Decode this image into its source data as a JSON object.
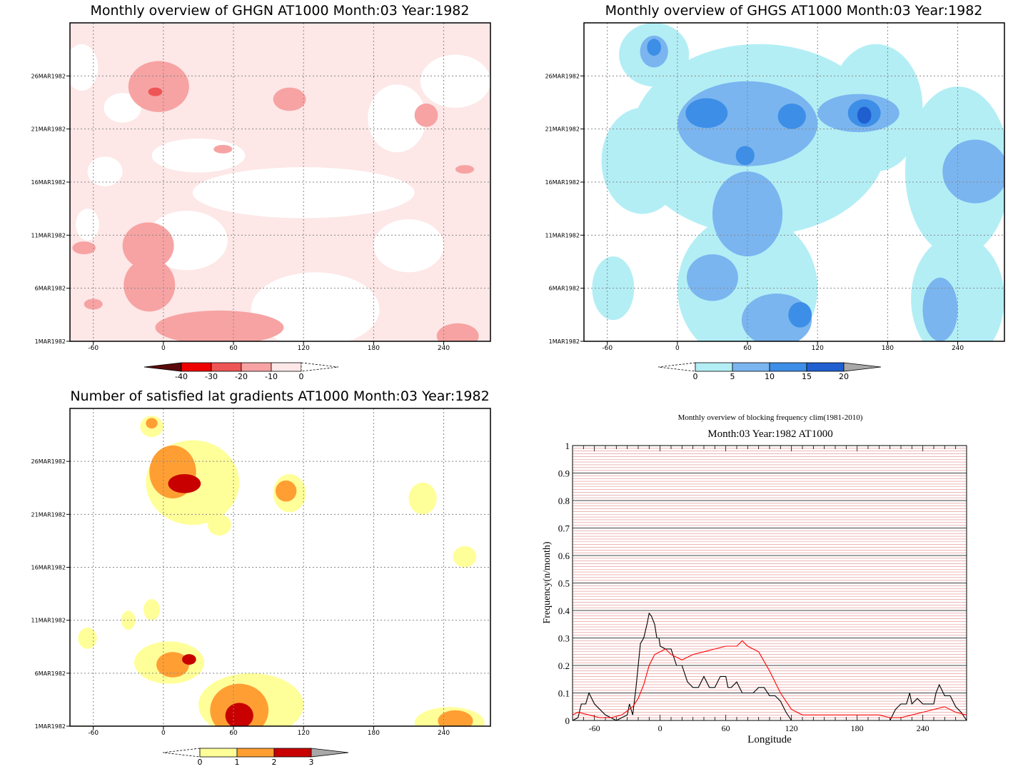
{
  "chart_data": [
    {
      "type": "heatmap",
      "title": "Monthly overview of GHGN AT1000 Month:03 Year:1982",
      "x_ticks": [
        "-60",
        "0",
        "60",
        "120",
        "180",
        "240"
      ],
      "y_ticks": [
        "1MAR1982",
        "6MAR1982",
        "11MAR1982",
        "16MAR1982",
        "21MAR1982",
        "26MAR1982"
      ],
      "colorbar": {
        "labels": [
          "-40",
          "-30",
          "-20",
          "-10",
          "0"
        ],
        "colors": [
          "#5a0a0a",
          "#ee0000",
          "#ee5555",
          "#f7a3a3",
          "#fde7e7",
          "#ffffff"
        ]
      },
      "background": "#fde7e7",
      "patches": [
        {
          "level": "white",
          "lon": -70,
          "day": 26.8,
          "rlon": 14,
          "rday": 2.2
        },
        {
          "level": "white",
          "lon": -35,
          "day": 23,
          "rlon": 16,
          "rday": 1.4
        },
        {
          "level": "white",
          "lon": 30,
          "day": 18.5,
          "rlon": 40,
          "rday": 1.6
        },
        {
          "level": "white",
          "lon": 120,
          "day": 15,
          "rlon": 95,
          "rday": 2.4
        },
        {
          "level": "white",
          "lon": 200,
          "day": 22,
          "rlon": 25,
          "rday": 3.2
        },
        {
          "level": "white",
          "lon": 250,
          "day": 25.5,
          "rlon": 30,
          "rday": 2.5
        },
        {
          "level": "white",
          "lon": 130,
          "day": 4,
          "rlon": 55,
          "rday": 3.5
        },
        {
          "level": "white",
          "lon": 20,
          "day": 10.5,
          "rlon": 35,
          "rday": 2.8
        },
        {
          "level": "white",
          "lon": -50,
          "day": 17,
          "rlon": 15,
          "rday": 1.4
        },
        {
          "level": "white",
          "lon": -65,
          "day": 12,
          "rlon": 10,
          "rday": 1.5
        },
        {
          "level": "white",
          "lon": 210,
          "day": 10,
          "rlon": 30,
          "rday": 2.5
        },
        {
          "level": "-10",
          "lon": -4,
          "day": 25,
          "rlon": 26,
          "rday": 2.4
        },
        {
          "level": "-10",
          "lon": 108,
          "day": 23.8,
          "rlon": 14,
          "rday": 1.1
        },
        {
          "level": "-10",
          "lon": 225,
          "day": 22.3,
          "rlon": 10,
          "rday": 1.1
        },
        {
          "level": "-10",
          "lon": -13,
          "day": 10,
          "rlon": 22,
          "rday": 2.2
        },
        {
          "level": "-10",
          "lon": -12,
          "day": 6.3,
          "rlon": 22,
          "rday": 2.5
        },
        {
          "level": "-10",
          "lon": 48,
          "day": 2.3,
          "rlon": 55,
          "rday": 1.6
        },
        {
          "level": "-10",
          "lon": -68,
          "day": 9.8,
          "rlon": 10,
          "rday": 0.6
        },
        {
          "level": "-10",
          "lon": -60,
          "day": 4.5,
          "rlon": 8,
          "rday": 0.5
        },
        {
          "level": "-10",
          "lon": 51,
          "day": 19.1,
          "rlon": 8,
          "rday": 0.4
        },
        {
          "level": "-10",
          "lon": 258,
          "day": 17.2,
          "rlon": 8,
          "rday": 0.4
        },
        {
          "level": "-10",
          "lon": 252,
          "day": 1.5,
          "rlon": 18,
          "rday": 1.2
        },
        {
          "level": "-20",
          "lon": -7,
          "day": 24.5,
          "rlon": 6,
          "rday": 0.4
        }
      ]
    },
    {
      "type": "heatmap",
      "title": "Monthly overview of GHGS AT1000 Month:03 Year:1982",
      "x_ticks": [
        "-60",
        "0",
        "60",
        "120",
        "180",
        "240"
      ],
      "y_ticks": [
        "1MAR1982",
        "6MAR1982",
        "11MAR1982",
        "16MAR1982",
        "21MAR1982",
        "26MAR1982"
      ],
      "colorbar": {
        "labels": [
          "0",
          "5",
          "10",
          "15",
          "20"
        ],
        "colors": [
          "#ffffff",
          "#b3eef5",
          "#7ab5f0",
          "#3d8ee6",
          "#1f5fd0",
          "#a8a8a8"
        ]
      },
      "background": "#ffffff",
      "patches": [
        {
          "level": "0-5",
          "lon": 70,
          "day": 20,
          "rlon": 110,
          "rday": 9
        },
        {
          "level": "0-5",
          "lon": -30,
          "day": 18,
          "rlon": 35,
          "rday": 5
        },
        {
          "level": "0-5",
          "lon": 60,
          "day": 6,
          "rlon": 60,
          "rday": 7
        },
        {
          "level": "0-5",
          "lon": 240,
          "day": 17,
          "rlon": 45,
          "rday": 8
        },
        {
          "level": "0-5",
          "lon": 240,
          "day": 5,
          "rlon": 40,
          "rday": 6
        },
        {
          "level": "0-5",
          "lon": -55,
          "day": 6,
          "rlon": 18,
          "rday": 3
        },
        {
          "level": "0-5",
          "lon": 170,
          "day": 23,
          "rlon": 40,
          "rday": 6
        },
        {
          "level": "0-5",
          "lon": -20,
          "day": 28,
          "rlon": 30,
          "rday": 3
        },
        {
          "level": "5-10",
          "lon": 60,
          "day": 21.5,
          "rlon": 60,
          "rday": 4
        },
        {
          "level": "5-10",
          "lon": 155,
          "day": 22.5,
          "rlon": 35,
          "rday": 1.8
        },
        {
          "level": "5-10",
          "lon": 60,
          "day": 13,
          "rlon": 30,
          "rday": 4
        },
        {
          "level": "5-10",
          "lon": 30,
          "day": 7,
          "rlon": 22,
          "rday": 2.2
        },
        {
          "level": "5-10",
          "lon": 85,
          "day": 3,
          "rlon": 30,
          "rday": 2.5
        },
        {
          "level": "5-10",
          "lon": 255,
          "day": 17,
          "rlon": 28,
          "rday": 3
        },
        {
          "level": "5-10",
          "lon": 225,
          "day": 4,
          "rlon": 15,
          "rday": 3
        },
        {
          "level": "5-10",
          "lon": -20,
          "day": 28.3,
          "rlon": 12,
          "rday": 1.5
        },
        {
          "level": "10-15",
          "lon": 25,
          "day": 22.5,
          "rlon": 18,
          "rday": 1.4
        },
        {
          "level": "10-15",
          "lon": 98,
          "day": 22.2,
          "rlon": 12,
          "rday": 1.2
        },
        {
          "level": "10-15",
          "lon": 160,
          "day": 22.5,
          "rlon": 14,
          "rday": 1.3
        },
        {
          "level": "10-15",
          "lon": 58,
          "day": 18.5,
          "rlon": 8,
          "rday": 0.9
        },
        {
          "level": "10-15",
          "lon": 105,
          "day": 3.5,
          "rlon": 10,
          "rday": 1.2
        },
        {
          "level": "10-15",
          "lon": -20,
          "day": 28.7,
          "rlon": 6,
          "rday": 0.8
        },
        {
          "level": "15-20",
          "lon": 160,
          "day": 22.3,
          "rlon": 6,
          "rday": 0.8
        }
      ]
    },
    {
      "type": "heatmap",
      "title": "Number of satisfied lat gradients AT1000 Month:03 Year:1982",
      "x_ticks": [
        "-60",
        "0",
        "60",
        "120",
        "180",
        "240"
      ],
      "y_ticks": [
        "1MAR1982",
        "6MAR1982",
        "11MAR1982",
        "16MAR1982",
        "21MAR1982",
        "26MAR1982"
      ],
      "colorbar": {
        "labels": [
          "0",
          "1",
          "2",
          "3"
        ],
        "colors": [
          "#ffffff",
          "#ffff9a",
          "#ff9f33",
          "#c80000",
          "#a8a8a8"
        ]
      },
      "background": "#ffffff",
      "patches": [
        {
          "level": "0-1",
          "lon": 25,
          "day": 24,
          "rlon": 40,
          "rday": 4
        },
        {
          "level": "0-1",
          "lon": 108,
          "day": 23,
          "rlon": 14,
          "rday": 1.8
        },
        {
          "level": "0-1",
          "lon": 222,
          "day": 22.5,
          "rlon": 12,
          "rday": 1.5
        },
        {
          "level": "0-1",
          "lon": 48,
          "day": 20,
          "rlon": 10,
          "rday": 1
        },
        {
          "level": "0-1",
          "lon": 258,
          "day": 17,
          "rlon": 10,
          "rday": 1
        },
        {
          "level": "0-1",
          "lon": -10,
          "day": 12,
          "rlon": 7,
          "rday": 1
        },
        {
          "level": "0-1",
          "lon": -30,
          "day": 11,
          "rlon": 6,
          "rday": 0.9
        },
        {
          "level": "0-1",
          "lon": -65,
          "day": 9.3,
          "rlon": 8,
          "rday": 1
        },
        {
          "level": "0-1",
          "lon": 5,
          "day": 7,
          "rlon": 30,
          "rday": 2
        },
        {
          "level": "0-1",
          "lon": 75,
          "day": 3,
          "rlon": 45,
          "rday": 3
        },
        {
          "level": "0-1",
          "lon": 245,
          "day": 1.3,
          "rlon": 30,
          "rday": 1.5
        },
        {
          "level": "0-1",
          "lon": -10,
          "day": 29.3,
          "rlon": 10,
          "rday": 1
        },
        {
          "level": "0-1",
          "lon": -68,
          "day": 0.5,
          "rlon": 4,
          "rday": 0.6
        },
        {
          "level": "1-2",
          "lon": 8,
          "day": 25,
          "rlon": 20,
          "rday": 2.5
        },
        {
          "level": "1-2",
          "lon": 105,
          "day": 23.2,
          "rlon": 9,
          "rday": 1
        },
        {
          "level": "1-2",
          "lon": 8,
          "day": 6.8,
          "rlon": 14,
          "rday": 1.2
        },
        {
          "level": "1-2",
          "lon": 65,
          "day": 2.5,
          "rlon": 25,
          "rday": 2.5
        },
        {
          "level": "1-2",
          "lon": 250,
          "day": 1.5,
          "rlon": 15,
          "rday": 1
        },
        {
          "level": "1-2",
          "lon": -10,
          "day": 29.6,
          "rlon": 5,
          "rday": 0.5
        },
        {
          "level": "2-3",
          "lon": 18,
          "day": 23.9,
          "rlon": 14,
          "rday": 0.9
        },
        {
          "level": "2-3",
          "lon": 22,
          "day": 7.3,
          "rlon": 6,
          "rday": 0.5
        },
        {
          "level": "2-3",
          "lon": 65,
          "day": 2,
          "rlon": 12,
          "rday": 1.2
        }
      ]
    },
    {
      "type": "line",
      "title": "Monthly overview of blocking frequency clim(1981-2010)",
      "subtitle": "Month:03 Year:1982  AT1000",
      "xlabel": "Longitude",
      "ylabel": "Frequency(n/month)",
      "xlim": [
        -80,
        280
      ],
      "ylim": [
        0,
        1
      ],
      "x_ticks": [
        "-60",
        "0",
        "60",
        "120",
        "180",
        "240"
      ],
      "y_ticks": [
        "0",
        "0.1",
        "0.2",
        "0.3",
        "0.4",
        "0.5",
        "0.6",
        "0.7",
        "0.8",
        "0.9",
        "1"
      ],
      "series": [
        {
          "color": "#000000",
          "x": [
            -80,
            -75,
            -72,
            -68,
            -65,
            -60,
            -50,
            -40,
            -30,
            -28,
            -25,
            -22,
            -20,
            -18,
            -15,
            -12,
            -10,
            -8,
            -5,
            -3,
            -1,
            0,
            5,
            10,
            15,
            20,
            25,
            30,
            35,
            40,
            45,
            50,
            55,
            60,
            62,
            65,
            70,
            75,
            80,
            85,
            90,
            95,
            100,
            105,
            110,
            115,
            120,
            125,
            200,
            210,
            215,
            220,
            225,
            228,
            230,
            235,
            240,
            245,
            250,
            252,
            255,
            260,
            265,
            270,
            275,
            280
          ],
          "y": [
            0,
            0.01,
            0.06,
            0.06,
            0.1,
            0.06,
            0.02,
            0,
            0.02,
            0.06,
            0.02,
            0.12,
            0.2,
            0.28,
            0.3,
            0.35,
            0.39,
            0.38,
            0.35,
            0.3,
            0.3,
            0.27,
            0.26,
            0.26,
            0.2,
            0.2,
            0.14,
            0.12,
            0.12,
            0.16,
            0.12,
            0.12,
            0.16,
            0.16,
            0.12,
            0.12,
            0.14,
            0.1,
            0.1,
            0.1,
            0.12,
            0.12,
            0.09,
            0.09,
            0.07,
            0.03,
            0,
            0,
            0,
            0,
            0.04,
            0.06,
            0.06,
            0.1,
            0.06,
            0.08,
            0.06,
            0.06,
            0.06,
            0.1,
            0.13,
            0.09,
            0.09,
            0.05,
            0.03,
            0
          ]
        },
        {
          "color": "#ff0000",
          "x": [
            -80,
            -75,
            -65,
            -55,
            -45,
            -35,
            -25,
            -20,
            -15,
            -10,
            -5,
            0,
            5,
            10,
            15,
            20,
            30,
            40,
            50,
            60,
            70,
            75,
            80,
            90,
            100,
            110,
            120,
            130,
            140,
            150,
            160,
            170,
            180,
            190,
            200,
            210,
            220,
            230,
            240,
            250,
            260,
            270,
            280
          ],
          "y": [
            0.02,
            0.03,
            0.02,
            0.01,
            0.01,
            0.02,
            0.05,
            0.08,
            0.13,
            0.2,
            0.24,
            0.25,
            0.26,
            0.24,
            0.23,
            0.22,
            0.24,
            0.25,
            0.26,
            0.27,
            0.27,
            0.29,
            0.27,
            0.25,
            0.18,
            0.1,
            0.04,
            0.02,
            0.02,
            0.02,
            0.02,
            0.02,
            0.02,
            0.02,
            0.02,
            0.01,
            0.01,
            0.02,
            0.03,
            0.04,
            0.05,
            0.03,
            0.02
          ]
        }
      ]
    }
  ]
}
